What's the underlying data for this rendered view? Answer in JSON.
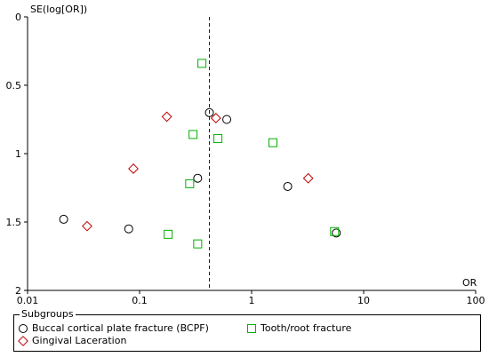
{
  "chart_data": {
    "type": "scatter",
    "title": "",
    "xlabel": "OR",
    "ylabel": "SE(log[OR])",
    "x_scale": "log",
    "x_range": [
      0.01,
      100
    ],
    "y_range": [
      0,
      2
    ],
    "y_inverted": true,
    "x_ticks": [
      "0.01",
      "0.1",
      "1",
      "10",
      "100"
    ],
    "y_ticks": [
      "0",
      "0.5",
      "1",
      "1.5",
      "2"
    ],
    "reference_line_or": 0.42,
    "legend_title": "Subgroups",
    "legend_position": "bottom",
    "series": [
      {
        "name": "Buccal cortical plate fracture (BCPF)",
        "marker": "circle",
        "color": "#000000",
        "points": [
          {
            "x": 0.021,
            "y": 1.48
          },
          {
            "x": 0.08,
            "y": 1.55
          },
          {
            "x": 0.33,
            "y": 1.18
          },
          {
            "x": 0.42,
            "y": 0.7
          },
          {
            "x": 0.6,
            "y": 0.75
          },
          {
            "x": 2.1,
            "y": 1.24
          },
          {
            "x": 5.7,
            "y": 1.58
          }
        ]
      },
      {
        "name": "Tooth/root fracture",
        "marker": "square",
        "color": "#00b000",
        "points": [
          {
            "x": 0.36,
            "y": 0.34
          },
          {
            "x": 0.3,
            "y": 0.86
          },
          {
            "x": 0.5,
            "y": 0.89
          },
          {
            "x": 1.55,
            "y": 0.92
          },
          {
            "x": 0.28,
            "y": 1.22
          },
          {
            "x": 0.18,
            "y": 1.59
          },
          {
            "x": 0.33,
            "y": 1.66
          },
          {
            "x": 5.5,
            "y": 1.57
          }
        ]
      },
      {
        "name": "Gingival Laceration",
        "marker": "diamond",
        "color": "#c00000",
        "points": [
          {
            "x": 0.175,
            "y": 0.73
          },
          {
            "x": 0.48,
            "y": 0.74
          },
          {
            "x": 0.088,
            "y": 1.11
          },
          {
            "x": 3.2,
            "y": 1.18
          },
          {
            "x": 0.034,
            "y": 1.53
          }
        ]
      }
    ]
  }
}
